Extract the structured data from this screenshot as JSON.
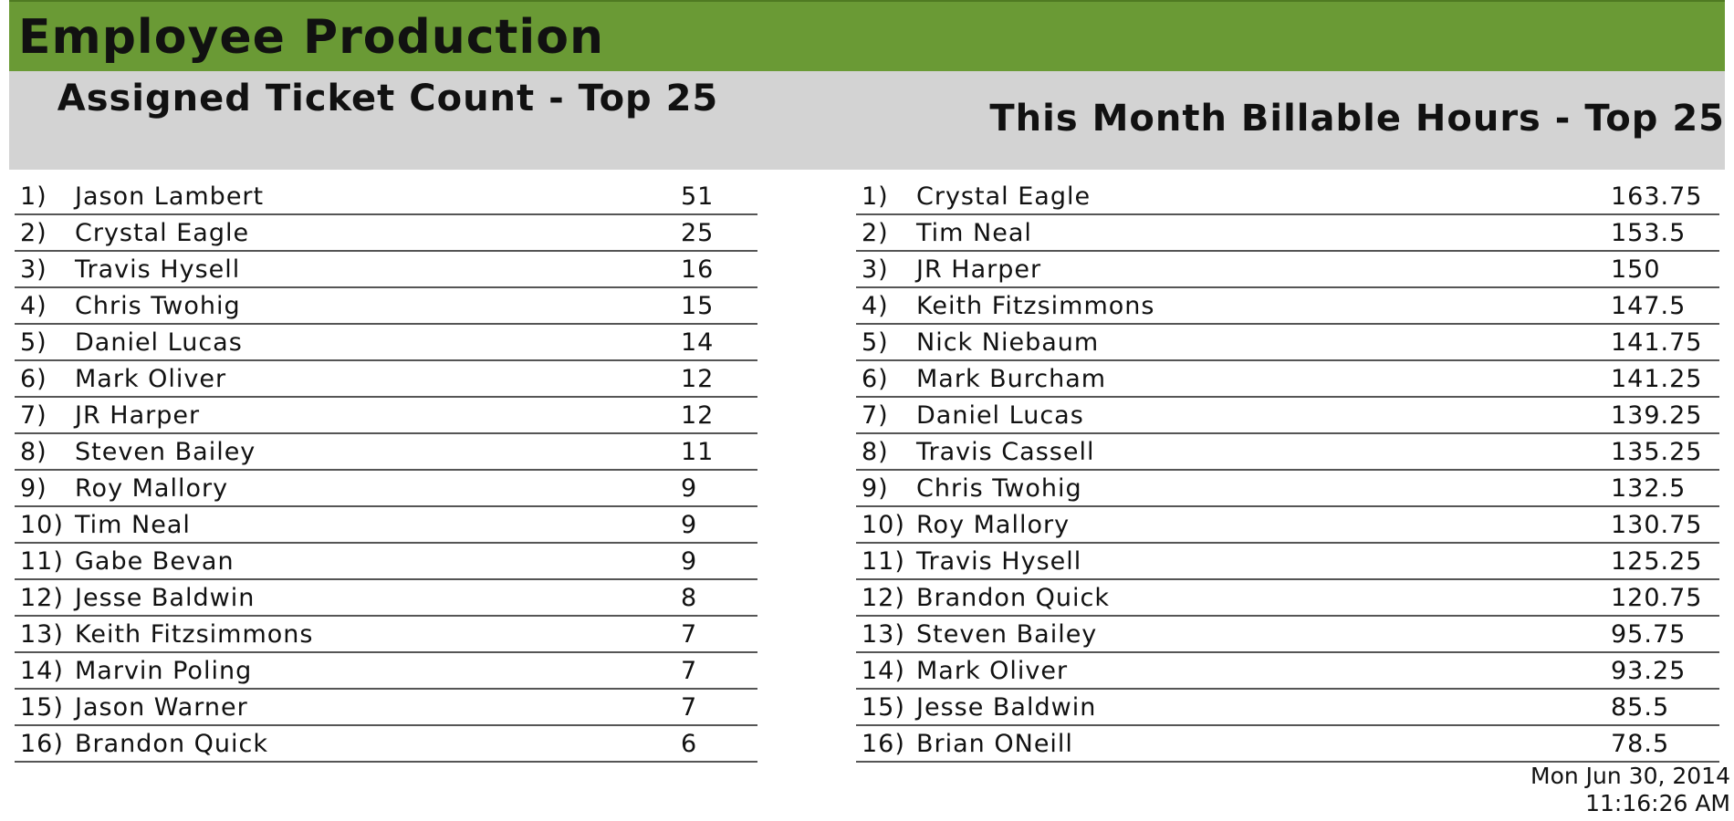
{
  "title": "Employee Production",
  "ticket_panel": {
    "header": "Assigned Ticket Count - Top 25",
    "rows": [
      {
        "rank": "1)",
        "name": "Jason Lambert",
        "value": "51"
      },
      {
        "rank": "2)",
        "name": "Crystal Eagle",
        "value": "25"
      },
      {
        "rank": "3)",
        "name": "Travis Hysell",
        "value": "16"
      },
      {
        "rank": "4)",
        "name": "Chris Twohig",
        "value": "15"
      },
      {
        "rank": "5)",
        "name": "Daniel Lucas",
        "value": "14"
      },
      {
        "rank": "6)",
        "name": "Mark Oliver",
        "value": "12"
      },
      {
        "rank": "7)",
        "name": "JR Harper",
        "value": "12"
      },
      {
        "rank": "8)",
        "name": "Steven Bailey",
        "value": "11"
      },
      {
        "rank": "9)",
        "name": "Roy Mallory",
        "value": "9"
      },
      {
        "rank": "10)",
        "name": "Tim Neal",
        "value": "9"
      },
      {
        "rank": "11)",
        "name": "Gabe Bevan",
        "value": "9"
      },
      {
        "rank": "12)",
        "name": "Jesse Baldwin",
        "value": "8"
      },
      {
        "rank": "13)",
        "name": "Keith Fitzsimmons",
        "value": "7"
      },
      {
        "rank": "14)",
        "name": "Marvin Poling",
        "value": "7"
      },
      {
        "rank": "15)",
        "name": "Jason Warner",
        "value": "7"
      },
      {
        "rank": "16)",
        "name": "Brandon Quick",
        "value": "6"
      }
    ]
  },
  "hours_panel": {
    "header": "This Month Billable Hours - Top 25",
    "rows": [
      {
        "rank": "1)",
        "name": "Crystal Eagle",
        "value": "163.75"
      },
      {
        "rank": "2)",
        "name": "Tim Neal",
        "value": "153.5"
      },
      {
        "rank": "3)",
        "name": "JR Harper",
        "value": "150"
      },
      {
        "rank": "4)",
        "name": "Keith Fitzsimmons",
        "value": "147.5"
      },
      {
        "rank": "5)",
        "name": "Nick Niebaum",
        "value": "141.75"
      },
      {
        "rank": "6)",
        "name": "Mark Burcham",
        "value": "141.25"
      },
      {
        "rank": "7)",
        "name": "Daniel Lucas",
        "value": "139.25"
      },
      {
        "rank": "8)",
        "name": "Travis Cassell",
        "value": "135.25"
      },
      {
        "rank": "9)",
        "name": "Chris Twohig",
        "value": "132.5"
      },
      {
        "rank": "10)",
        "name": "Roy Mallory",
        "value": "130.75"
      },
      {
        "rank": "11)",
        "name": "Travis Hysell",
        "value": "125.25"
      },
      {
        "rank": "12)",
        "name": "Brandon Quick",
        "value": "120.75"
      },
      {
        "rank": "13)",
        "name": "Steven Bailey",
        "value": "95.75"
      },
      {
        "rank": "14)",
        "name": "Mark Oliver",
        "value": "93.25"
      },
      {
        "rank": "15)",
        "name": "Jesse Baldwin",
        "value": "85.5"
      },
      {
        "rank": "16)",
        "name": "Brian ONeill",
        "value": "78.5"
      }
    ]
  },
  "timestamp": {
    "date": "Mon Jun 30, 2014",
    "time": "11:16:26 AM"
  },
  "colors": {
    "title_bar": "#6a9a35",
    "header_band": "#d3d3d3",
    "row_rule": "#555555"
  }
}
